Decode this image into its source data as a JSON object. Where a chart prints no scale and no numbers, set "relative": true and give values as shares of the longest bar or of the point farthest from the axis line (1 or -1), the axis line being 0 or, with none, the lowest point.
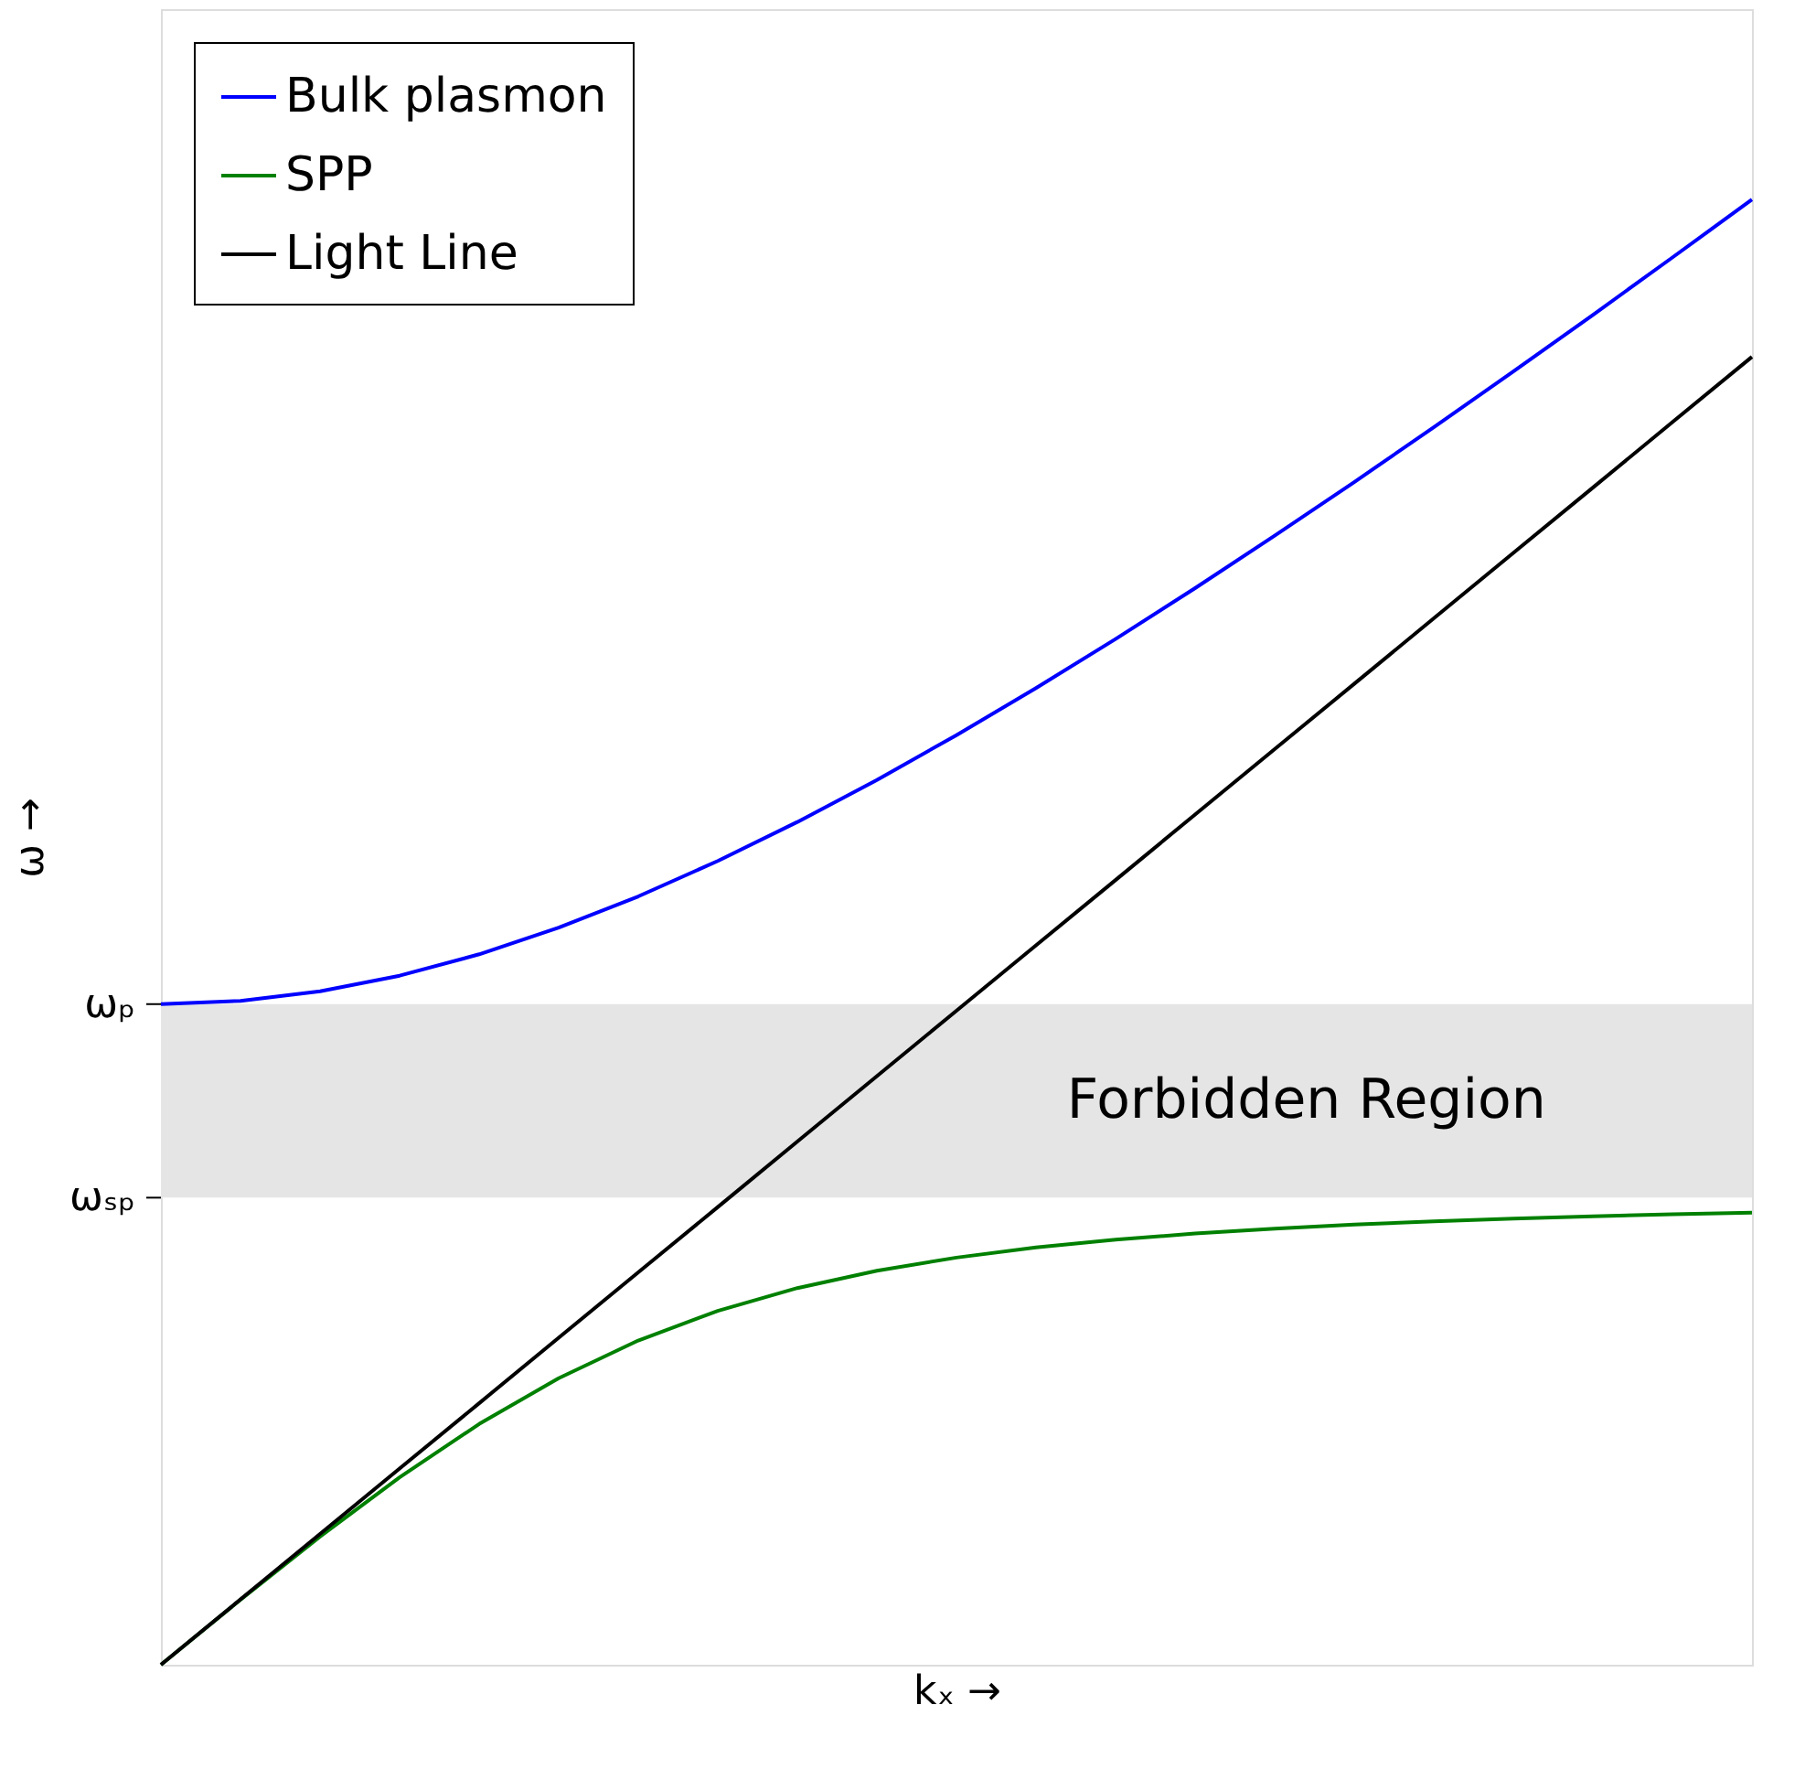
{
  "chart_data": {
    "type": "line",
    "relative": true,
    "xlabel": "kₓ →",
    "ylabel": "ω →",
    "categories": [
      null,
      null,
      null,
      null,
      null,
      null,
      null,
      null,
      null,
      null,
      null,
      null,
      null,
      null,
      null,
      null,
      null,
      null,
      null,
      null,
      null
    ],
    "tick_labels": false,
    "legend": "top left",
    "line_style": "solid",
    "series": [
      {
        "name": "Bulk plasmon",
        "color": "#0000ff",
        "values": [
          0.4509,
          0.4531,
          0.4596,
          0.4703,
          0.4849,
          0.5031,
          0.5244,
          0.5486,
          0.5752,
          0.6039,
          0.6345,
          0.6666,
          0.7001,
          0.7348,
          0.7706,
          0.8072,
          0.8446,
          0.8827,
          0.9213,
          0.9605,
          1.0
        ]
      },
      {
        "name": "SPP",
        "color": "#008000",
        "values": [
          0,
          0.0444,
          0.0875,
          0.1279,
          0.1643,
          0.1956,
          0.2213,
          0.2415,
          0.2571,
          0.2689,
          0.2779,
          0.2848,
          0.2901,
          0.2943,
          0.2977,
          0.3004,
          0.3027,
          0.3045,
          0.3061,
          0.3074,
          0.3085
        ]
      },
      {
        "name": "Light Line",
        "color": "#000000",
        "values": [
          0,
          0.0446,
          0.0893,
          0.1339,
          0.1785,
          0.2232,
          0.2678,
          0.3124,
          0.3571,
          0.4017,
          0.4464,
          0.491,
          0.5356,
          0.5803,
          0.6249,
          0.6695,
          0.7142,
          0.7588,
          0.8034,
          0.8481,
          0.8927
        ]
      }
    ],
    "bands": [
      {
        "axis": "y",
        "from": 0.3188,
        "to": 0.4509,
        "label": "Forbidden Region",
        "color": "#e5e5e5"
      }
    ],
    "ref_lines": [
      {
        "axis": "y",
        "value": 0.4509,
        "label": "ωₚ"
      },
      {
        "axis": "y",
        "value": 0.3188,
        "label": "ωₛₚ"
      }
    ]
  }
}
